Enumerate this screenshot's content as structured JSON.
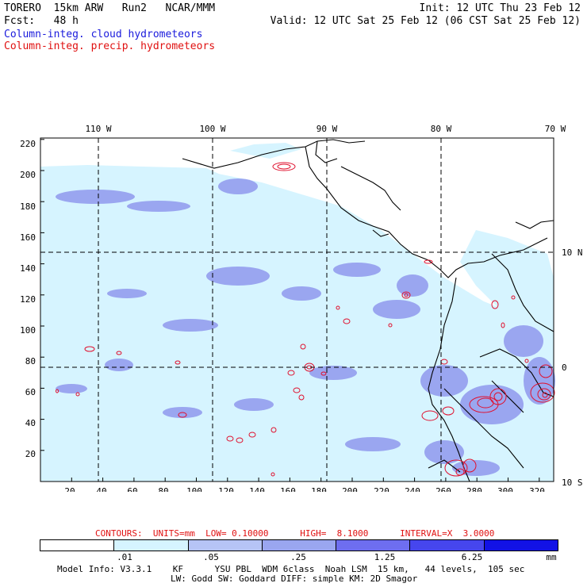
{
  "header": {
    "model_line": "TORERO  15km ARW   Run2   NCAR/MMM",
    "init_line": "Init: 12 UTC Thu 23 Feb 12",
    "fcst_line": "Fcst:   48 h",
    "valid_line": "Valid: 12 UTC Sat 25 Feb 12 (06 CST Sat 25 Feb 12)",
    "field1": "Column-integ. cloud hydrometeors",
    "field2": "Column-integ. precip. hydrometeors",
    "field1_color": "#1a1adc",
    "field2_color": "#e01010"
  },
  "map": {
    "top_lon_labels": [
      "110 W",
      "100 W",
      "90 W",
      "80 W",
      "70 W"
    ],
    "left_y_labels": [
      "220",
      "200",
      "180",
      "160",
      "140",
      "120",
      "100",
      "80",
      "60",
      "40",
      "20"
    ],
    "bottom_x_labels": [
      "20",
      "40",
      "60",
      "80",
      "100",
      "120",
      "140",
      "160",
      "180",
      "200",
      "220",
      "240",
      "260",
      "280",
      "300",
      "320"
    ],
    "right_lat_labels": [
      "10 N",
      "0",
      "10 S"
    ],
    "cloud_color_light": "#d6f4ff",
    "cloud_color_mid": "#9aa6f0",
    "precip_contour_color": "#e0102e"
  },
  "contour_info": "CONTOURS:  UNITS=mm  LOW= 0.10000      HIGH=  8.1000      INTERVAL=X  3.0000",
  "legend": {
    "ticks": [
      ".01",
      ".05",
      ".25",
      "1.25",
      "6.25"
    ],
    "unit": "mm",
    "colors": [
      "#ffffff",
      "#d6f4ff",
      "#b6c4f6",
      "#9aa6f0",
      "#6e6ef0",
      "#4646ee",
      "#1212e6"
    ]
  },
  "footer": {
    "line1": "Model Info: V3.3.1    KF      YSU PBL  WDM 6class  Noah LSM  15 km,   44 levels,  105 sec",
    "line2": "LW: Godd SW: Goddard DIFF: simple KM: 2D Smagor"
  }
}
